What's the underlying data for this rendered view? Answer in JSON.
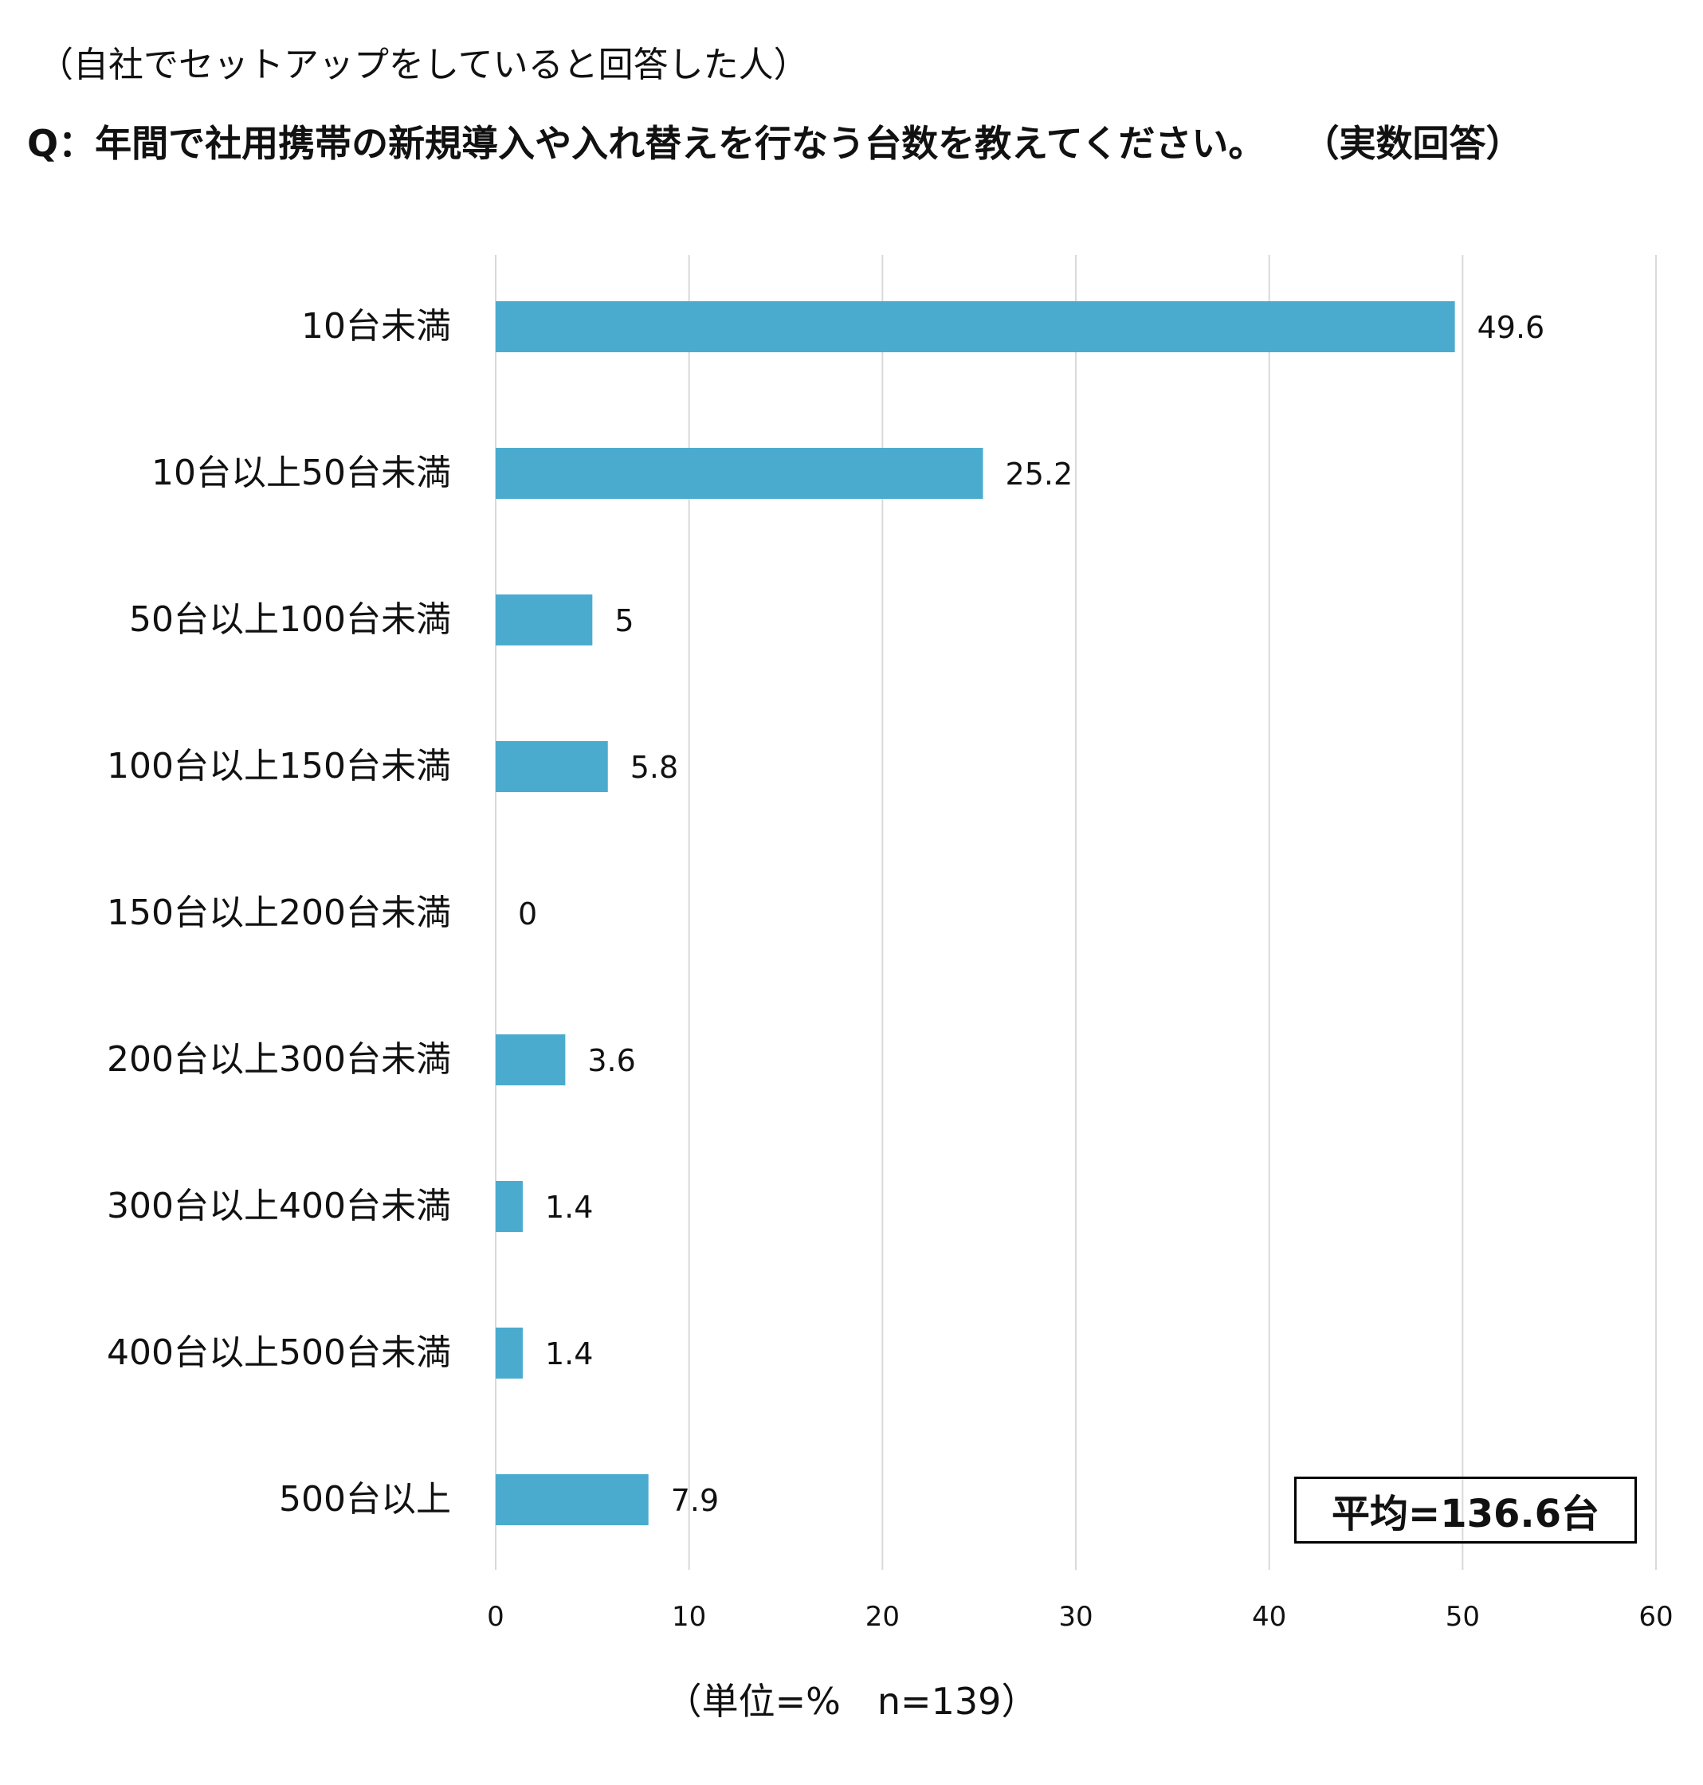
{
  "subtitle": "（自社でセットアップをしていると回答した人）",
  "question": "Q：年間で社用携帯の新規導入や入れ替えを行なう台数を教えてください。",
  "question_note": "（実数回答）",
  "average_label": "平均=136.6台",
  "footnote": "（単位=%　n=139）",
  "colors": {
    "bar": "#4babcf",
    "grid": "#d9d9d9"
  },
  "chart_data": {
    "type": "bar",
    "orientation": "horizontal",
    "categories": [
      "10台未満",
      "10台以上50台未満",
      "50台以上100台未満",
      "100台以上150台未満",
      "150台以上200台未満",
      "200台以上300台未満",
      "300台以上400台未満",
      "400台以上500台未満",
      "500台以上"
    ],
    "values": [
      49.6,
      25.2,
      5,
      5.8,
      0,
      3.6,
      1.4,
      1.4,
      7.9
    ],
    "value_labels": [
      "49.6",
      "25.2",
      "5",
      "5.8",
      "0",
      "3.6",
      "1.4",
      "1.4",
      "7.9"
    ],
    "xlim": [
      0,
      60
    ],
    "xticks": [
      0,
      10,
      20,
      30,
      40,
      50,
      60
    ],
    "grid": true,
    "legend": "none"
  }
}
